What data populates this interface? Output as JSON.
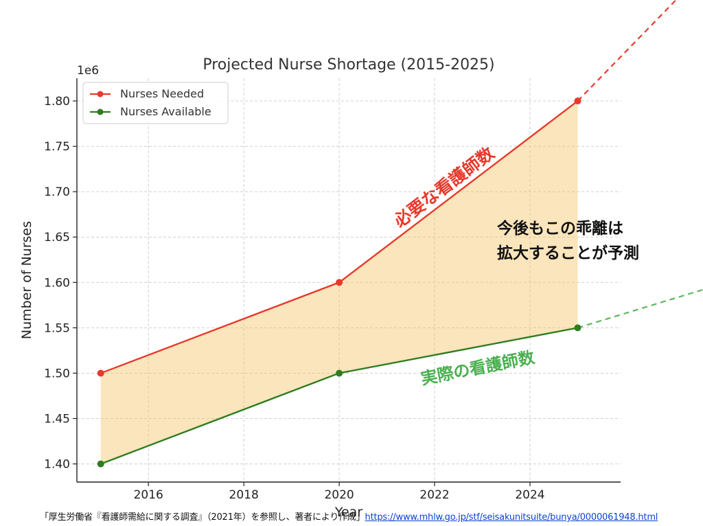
{
  "chart_data": {
    "type": "line",
    "title": "Projected Nurse Shortage (2015-2025)",
    "xlabel": "Year",
    "ylabel": "Number of Nurses",
    "y_offset_label": "1e6",
    "x": [
      2015,
      2020,
      2025
    ],
    "series": [
      {
        "name": "Nurses Needed",
        "values": [
          1500000,
          1600000,
          1800000
        ],
        "color": "#e8392c"
      },
      {
        "name": "Nurses Available",
        "values": [
          1400000,
          1500000,
          1550000
        ],
        "color": "#2e7d1f"
      }
    ],
    "fill_between_color": "#f5c66b",
    "xlim": [
      2014.5,
      2025.9
    ],
    "ylim": [
      1.38,
      1.825
    ],
    "x_ticks": [
      2016,
      2018,
      2020,
      2022,
      2024
    ],
    "x_tick_labels": [
      "2016",
      "2018",
      "2020",
      "2022",
      "2024"
    ],
    "y_ticks": [
      1.4,
      1.45,
      1.5,
      1.55,
      1.6,
      1.65,
      1.7,
      1.75,
      1.8
    ],
    "y_tick_labels": [
      "1.40",
      "1.45",
      "1.50",
      "1.55",
      "1.60",
      "1.65",
      "1.70",
      "1.75",
      "1.80"
    ],
    "grid": true,
    "legend_position": "top-left",
    "annotations": {
      "needed": {
        "text": "必要な看護師数",
        "color": "#e8392c"
      },
      "available": {
        "text": "実際の看護師数",
        "color": "#4caf50"
      },
      "gap_line1": "今後もこの乖離は",
      "gap_line2": "拡大することが予測",
      "gap_color": "#111111"
    },
    "trend_colors": {
      "needed": "#e8392c",
      "available": "#5cb85c"
    }
  },
  "footer": {
    "source_text": "「厚生労働省『看護師需給に関する調査』（2021年）を参照し、著者により作成」",
    "url": "https://www.mhlw.go.jp/stf/seisakunitsuite/bunya/0000061948.html"
  }
}
